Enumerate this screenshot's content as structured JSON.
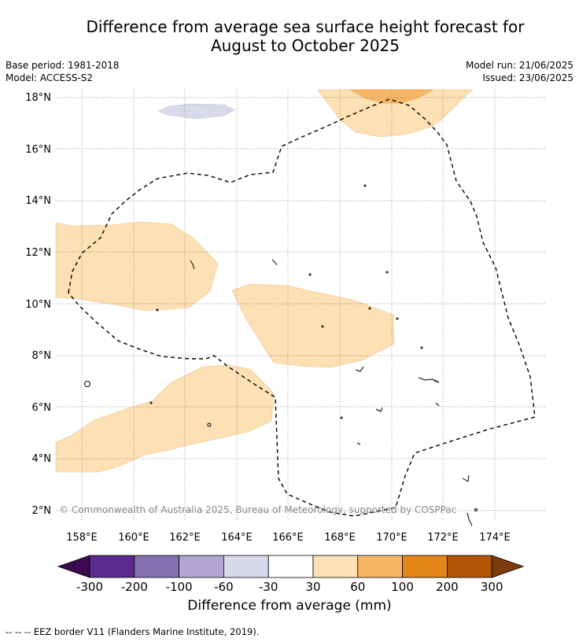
{
  "title_line1": "Difference from average sea surface height forecast for",
  "title_line2": "August to October 2025",
  "meta_left": {
    "base_period": "Base period: 1981-2018",
    "model": "Model: ACCESS-S2"
  },
  "meta_right": {
    "model_run": "Model run: 21/06/2025",
    "issued": "Issued: 23/06/2025"
  },
  "copyright": "© Commonwealth of Australia 2025, Bureau of Meteorology, supported by COSPPac",
  "map": {
    "lat_labels": [
      "18°N",
      "16°N",
      "14°N",
      "12°N",
      "10°N",
      "8°N",
      "6°N",
      "4°N",
      "2°N"
    ],
    "lon_labels": [
      "158°E",
      "160°E",
      "162°E",
      "164°E",
      "166°E",
      "168°E",
      "170°E",
      "172°E",
      "174°E"
    ]
  },
  "colorbar": {
    "title": "Difference from average (mm)",
    "tick_labels": [
      "-300",
      "-200",
      "-100",
      "-60",
      "-30",
      "30",
      "60",
      "100",
      "200",
      "300"
    ],
    "colors": [
      "#3d0a50",
      "#5c2a8e",
      "#8470b0",
      "#b0a6d1",
      "#d9d9ec",
      "#ffffff",
      "#fde0b3",
      "#f9b766",
      "#e2861a",
      "#b25606",
      "#7d3a0a"
    ]
  },
  "legend_note": "--  --  -- EEZ border V11 (Flanders Marine Institute, 2019)."
}
